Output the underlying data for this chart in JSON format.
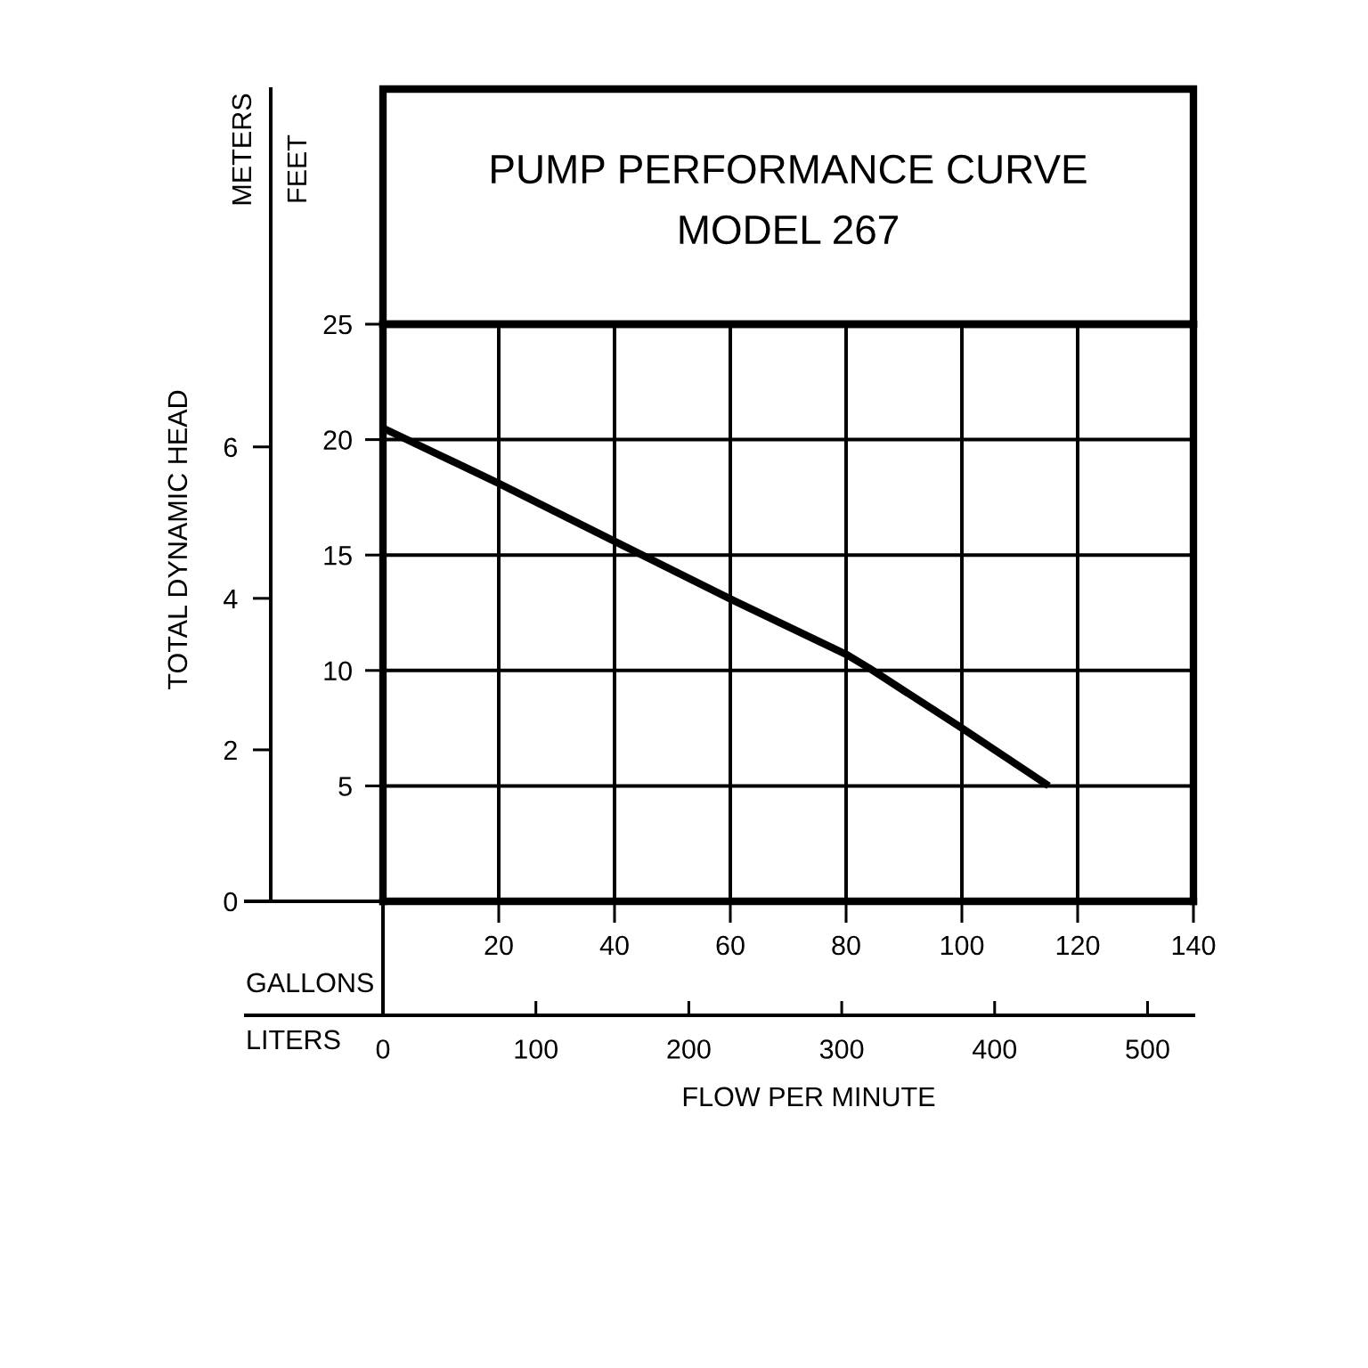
{
  "chart_data": {
    "type": "line",
    "title": "PUMP PERFORMANCE CURVE",
    "subtitle": "MODEL 267",
    "xlabel": "GALLONS",
    "x2label": "LITERS",
    "ylabel": "FEET",
    "y2label": "METERS",
    "annotations": [
      "TOTAL DYNAMIC HEAD",
      "FLOW PER MINUTE"
    ],
    "xlim": [
      0,
      140
    ],
    "xticks": [
      {
        "value": 0,
        "label": null
      },
      20,
      40,
      60,
      80,
      100,
      120,
      140
    ],
    "x2lim": [
      0,
      530
    ],
    "x2ticks": [
      0,
      100,
      200,
      300,
      400,
      500
    ],
    "ylim": [
      0,
      25
    ],
    "yticks": [
      {
        "value": 0,
        "label": null
      },
      5,
      10,
      15,
      20,
      25
    ],
    "y2lim": [
      0,
      7.62
    ],
    "y2ticks": [
      0,
      2,
      4,
      6
    ],
    "grid": true,
    "line_style": "solid",
    "series": [
      {
        "color": "#000000",
        "x": [
          0,
          20,
          40,
          60,
          80,
          84,
          100,
          115
        ],
        "values": [
          20.5,
          18.1,
          15.6,
          13.1,
          10.7,
          10.1,
          7.5,
          5
        ]
      }
    ]
  }
}
